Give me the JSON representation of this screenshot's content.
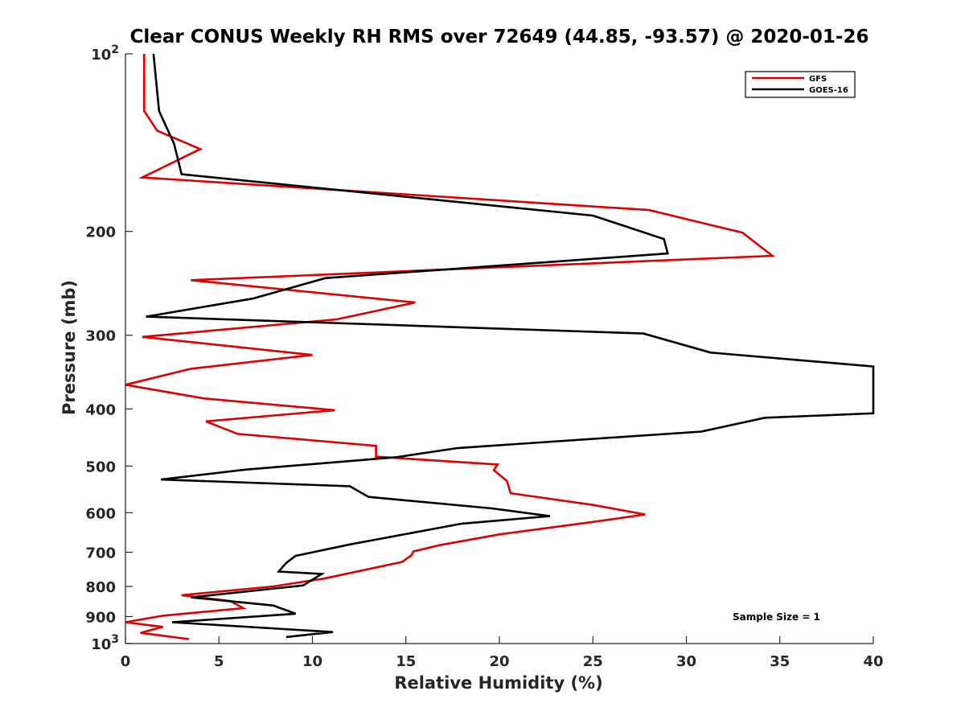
{
  "chart_data": {
    "type": "line",
    "title": "Clear CONUS Weekly RH RMS over 72649 (44.85, -93.57) @ 2020-01-26",
    "xlabel": "Relative Humidity (%)",
    "ylabel": "Pressure (mb)",
    "xlim": [
      0,
      40
    ],
    "ylim": [
      100,
      1000
    ],
    "y_scale": "log",
    "y_reversed": true,
    "x_ticks": [
      0,
      5,
      10,
      15,
      20,
      25,
      30,
      35,
      40
    ],
    "y_ticks": [
      200,
      300,
      400,
      500,
      600,
      700,
      800,
      900
    ],
    "y_tick_ends": [
      {
        "value": 100,
        "base": "10",
        "exp": "2"
      },
      {
        "value": 1000,
        "base": "10",
        "exp": "3"
      }
    ],
    "grid": false,
    "legend_position": "top-right",
    "annotation": "Sample Size = 1",
    "series": [
      {
        "name": "GFS",
        "color": "#dd0000",
        "points": [
          [
            1.0,
            100
          ],
          [
            1.0,
            125
          ],
          [
            1.7,
            135
          ],
          [
            4.0,
            145
          ],
          [
            0.9,
            162
          ],
          [
            28.0,
            184
          ],
          [
            33.0,
            201
          ],
          [
            34.6,
            220
          ],
          [
            3.5,
            242
          ],
          [
            15.5,
            264
          ],
          [
            11.3,
            282
          ],
          [
            0.9,
            302
          ],
          [
            10.0,
            324
          ],
          [
            3.5,
            342
          ],
          [
            0.0,
            364
          ],
          [
            4.2,
            384
          ],
          [
            11.2,
            402
          ],
          [
            4.3,
            420
          ],
          [
            6.0,
            441
          ],
          [
            13.4,
            462
          ],
          [
            13.4,
            482
          ],
          [
            19.9,
            497
          ],
          [
            19.7,
            508
          ],
          [
            20.4,
            530
          ],
          [
            20.6,
            556
          ],
          [
            25.0,
            582
          ],
          [
            27.8,
            604
          ],
          [
            25.0,
            622
          ],
          [
            20.0,
            653
          ],
          [
            16.8,
            681
          ],
          [
            15.4,
            698
          ],
          [
            15.3,
            708
          ],
          [
            14.8,
            727
          ],
          [
            10.6,
            776
          ],
          [
            7.9,
            800
          ],
          [
            3.0,
            828
          ],
          [
            5.6,
            847
          ],
          [
            6.3,
            871
          ],
          [
            2.0,
            897
          ],
          [
            0.0,
            920
          ],
          [
            2.0,
            937
          ],
          [
            0.8,
            959
          ],
          [
            3.4,
            983
          ]
        ]
      },
      {
        "name": "GOES-16",
        "color": "#000000",
        "points": [
          [
            1.5,
            100
          ],
          [
            1.8,
            125
          ],
          [
            2.6,
            142
          ],
          [
            3.0,
            160
          ],
          [
            25.0,
            188
          ],
          [
            28.8,
            206
          ],
          [
            29.0,
            218
          ],
          [
            10.7,
            240
          ],
          [
            6.8,
            260
          ],
          [
            1.1,
            279
          ],
          [
            27.7,
            298
          ],
          [
            31.3,
            321
          ],
          [
            40.0,
            339
          ],
          [
            40.0,
            407
          ],
          [
            34.2,
            414
          ],
          [
            30.8,
            437
          ],
          [
            17.8,
            466
          ],
          [
            14.5,
            483
          ],
          [
            6.4,
            507
          ],
          [
            1.9,
            527
          ],
          [
            12.0,
            541
          ],
          [
            13.0,
            564
          ],
          [
            19.6,
            590
          ],
          [
            22.7,
            608
          ],
          [
            18.0,
            626
          ],
          [
            12.0,
            679
          ],
          [
            9.1,
            710
          ],
          [
            8.6,
            730
          ],
          [
            8.2,
            755
          ],
          [
            10.5,
            762
          ],
          [
            9.5,
            797
          ],
          [
            3.5,
            835
          ],
          [
            7.9,
            862
          ],
          [
            9.1,
            890
          ],
          [
            2.5,
            920
          ],
          [
            11.1,
            956
          ],
          [
            8.6,
            975
          ]
        ]
      }
    ]
  }
}
